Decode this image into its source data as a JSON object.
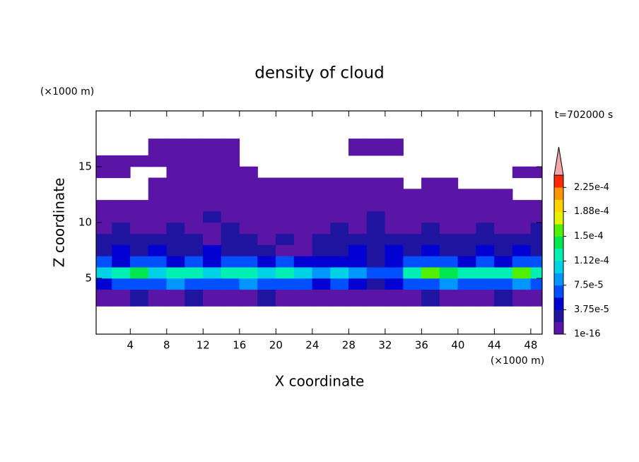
{
  "chart_data": {
    "type": "contour",
    "title": "density of cloud",
    "time_label": "t=702000 s",
    "x_label": "X coordinate",
    "y_label": "Z coordinate",
    "x_unit": "(×1000 m)",
    "y_unit": "(×1000 m)",
    "xlim": [
      0.25,
      49.25
    ],
    "ylim": [
      0,
      20
    ],
    "xticks": [
      4,
      8,
      12,
      16,
      20,
      24,
      28,
      32,
      36,
      40,
      44,
      48
    ],
    "yticks": [
      5,
      10,
      15
    ],
    "x": [
      1,
      3,
      5,
      7,
      9,
      11,
      13,
      15,
      17,
      19,
      21,
      23,
      25,
      27,
      29,
      31,
      33,
      35,
      37,
      39,
      41,
      43,
      45,
      47,
      49
    ],
    "z": [
      3.5,
      4.5,
      5.5,
      6.5,
      7.5,
      8.5,
      9.5,
      10.5,
      11.5,
      12.5,
      13.5,
      14.5,
      15.5,
      16.5
    ],
    "values": [
      [
        1.5e-05,
        1e-05,
        2e-05,
        1.5e-05,
        1e-05,
        2e-05,
        1.5e-05,
        1e-05,
        1.5e-05,
        2e-05,
        1.5e-05,
        1e-05,
        1.5e-05,
        1e-05,
        1.5e-05,
        1e-05,
        1e-05,
        1.5e-05,
        2e-05,
        1.5e-05,
        1e-05,
        1.5e-05,
        2e-05,
        1.5e-05,
        1e-05
      ],
      [
        5e-05,
        6e-05,
        7e-05,
        6e-05,
        8e-05,
        7e-05,
        6e-05,
        7e-05,
        8e-05,
        6e-05,
        7e-05,
        6e-05,
        5e-05,
        6e-05,
        4e-05,
        3e-05,
        4e-05,
        6e-05,
        7e-05,
        8e-05,
        7e-05,
        6e-05,
        7e-05,
        8e-05,
        6e-05
      ],
      [
        0.00011,
        0.00012,
        0.00014,
        0.00011,
        0.00012,
        0.00013,
        0.0001,
        0.00012,
        0.00013,
        0.00011,
        0.00012,
        0.0001,
        9e-05,
        0.0001,
        8e-05,
        6e-05,
        7e-05,
        0.00012,
        0.00016,
        0.00014,
        0.00012,
        0.00013,
        0.00012,
        0.00016,
        0.00013
      ],
      [
        6e-05,
        5e-05,
        7e-05,
        6e-05,
        5e-05,
        6e-05,
        5e-05,
        6e-05,
        7e-05,
        5e-05,
        6e-05,
        5e-05,
        4e-05,
        5e-05,
        4e-05,
        3e-05,
        4e-05,
        6e-05,
        7e-05,
        6e-05,
        5e-05,
        6e-05,
        5e-05,
        7e-05,
        6e-05
      ],
      [
        3e-05,
        4e-05,
        3e-05,
        4e-05,
        3e-05,
        3e-05,
        4e-05,
        3e-05,
        2e-05,
        3e-05,
        1.5e-05,
        1.5e-05,
        3e-05,
        2e-05,
        4e-05,
        3e-05,
        4e-05,
        3e-05,
        4e-05,
        3e-05,
        3e-05,
        4e-05,
        3e-05,
        4e-05,
        3e-05
      ],
      [
        2e-05,
        3e-05,
        2e-05,
        2e-05,
        3e-05,
        2e-05,
        1.5e-05,
        2e-05,
        2e-05,
        1.5e-05,
        2e-05,
        1.5e-05,
        2e-05,
        3e-05,
        2e-05,
        2e-05,
        3e-05,
        2e-05,
        2e-05,
        3e-05,
        2e-05,
        2e-05,
        3e-05,
        2e-05,
        2e-05
      ],
      [
        1.5e-05,
        2e-05,
        1.5e-05,
        1.5e-05,
        2e-05,
        1.5e-05,
        1.5e-05,
        2e-05,
        1.5e-05,
        1e-05,
        1.5e-05,
        1e-05,
        1.5e-05,
        2e-05,
        1.5e-05,
        2e-05,
        1.5e-05,
        1.5e-05,
        2e-05,
        1.5e-05,
        1.5e-05,
        2e-05,
        1.5e-05,
        1.5e-05,
        2e-05
      ],
      [
        1e-05,
        1e-05,
        1e-05,
        1e-05,
        1e-05,
        1e-05,
        2e-05,
        1e-05,
        1e-05,
        1e-05,
        1e-05,
        1e-05,
        1e-05,
        1e-05,
        1e-05,
        2e-05,
        1e-05,
        1e-05,
        1e-05,
        1e-05,
        1e-05,
        1e-05,
        1e-05,
        1e-05,
        1e-05
      ],
      [
        5e-06,
        5e-06,
        5e-06,
        5e-06,
        5e-06,
        1e-05,
        1e-05,
        1e-05,
        5e-06,
        5e-06,
        5e-06,
        5e-06,
        5e-06,
        5e-06,
        5e-06,
        5e-06,
        5e-06,
        5e-06,
        5e-06,
        5e-06,
        5e-06,
        5e-06,
        5e-06,
        5e-06,
        5e-06
      ],
      [
        null,
        null,
        null,
        5e-06,
        5e-06,
        5e-06,
        5e-06,
        5e-06,
        5e-06,
        5e-06,
        5e-06,
        5e-06,
        5e-06,
        5e-06,
        5e-06,
        5e-06,
        5e-06,
        5e-06,
        5e-06,
        5e-06,
        5e-06,
        5e-06,
        5e-06,
        null,
        null
      ],
      [
        null,
        null,
        null,
        5e-06,
        5e-06,
        5e-06,
        5e-06,
        5e-06,
        5e-06,
        5e-06,
        5e-06,
        5e-06,
        5e-06,
        5e-06,
        5e-06,
        5e-06,
        5e-06,
        null,
        5e-06,
        5e-06,
        null,
        null,
        null,
        null,
        null
      ],
      [
        5e-06,
        5e-06,
        null,
        null,
        5e-06,
        5e-06,
        5e-06,
        5e-06,
        5e-06,
        null,
        null,
        null,
        null,
        null,
        null,
        null,
        null,
        null,
        null,
        null,
        null,
        null,
        null,
        5e-06,
        5e-06
      ],
      [
        5e-06,
        5e-06,
        5e-06,
        5e-06,
        5e-06,
        5e-06,
        5e-06,
        5e-06,
        null,
        null,
        null,
        null,
        null,
        null,
        null,
        null,
        null,
        null,
        null,
        null,
        null,
        null,
        null,
        null,
        null
      ],
      [
        null,
        null,
        null,
        5e-06,
        5e-06,
        5e-06,
        5e-06,
        5e-06,
        null,
        null,
        null,
        null,
        null,
        null,
        5e-06,
        5e-06,
        5e-06,
        null,
        null,
        null,
        null,
        null,
        null,
        null,
        null
      ]
    ],
    "colorbar": {
      "range": [
        1e-16,
        0.00024375
      ],
      "ticks": [
        {
          "value": 1e-16,
          "label": "1e-16"
        },
        {
          "value": 3.75e-05,
          "label": "3.75e-5"
        },
        {
          "value": 7.5e-05,
          "label": "7.5e-5"
        },
        {
          "value": 0.000112,
          "label": "1.12e-4"
        },
        {
          "value": 0.00015,
          "label": "1.5e-4"
        },
        {
          "value": 0.000188,
          "label": "1.88e-4"
        },
        {
          "value": 0.000225,
          "label": "2.25e-4"
        }
      ],
      "colors": [
        "#5a14a6",
        "#1e14a0",
        "#0000d2",
        "#0050ff",
        "#0096ff",
        "#00d2e6",
        "#00f0b4",
        "#00e650",
        "#50f000",
        "#e6f000",
        "#ffd200",
        "#ff9600",
        "#ff2800"
      ],
      "extend_color": "#f4a6a6"
    }
  }
}
